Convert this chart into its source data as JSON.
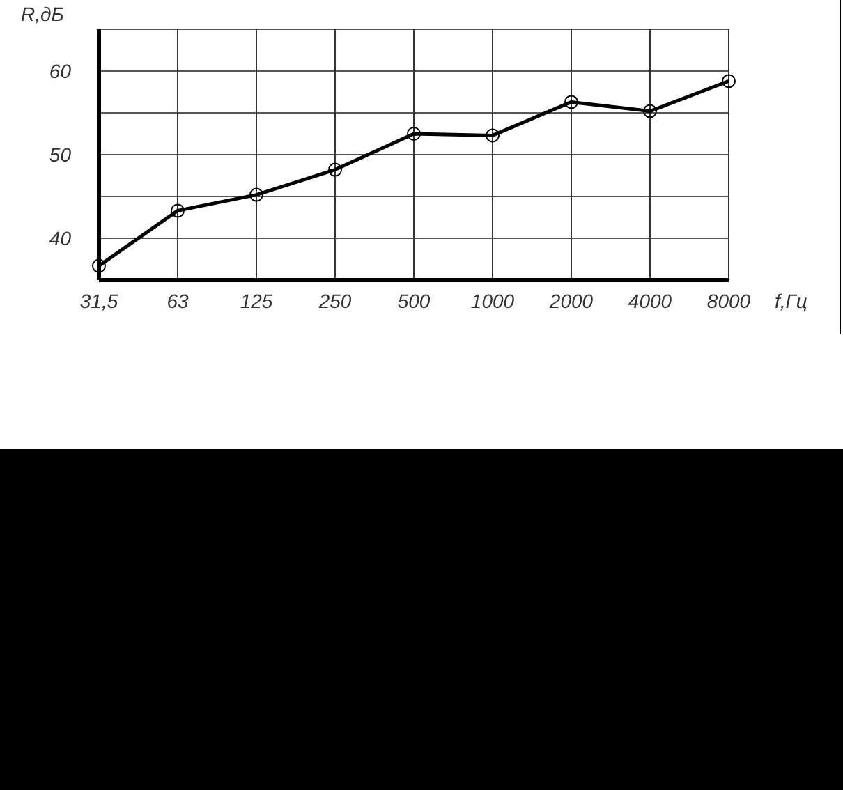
{
  "chart_data": {
    "type": "line",
    "xlabel": "f,Гц",
    "ylabel": "R,дБ",
    "categories": [
      "31,5",
      "63",
      "125",
      "250",
      "500",
      "1000",
      "2000",
      "4000",
      "8000"
    ],
    "series": [
      {
        "color": "#000000",
        "values": [
          36.7,
          43.3,
          45.2,
          48.2,
          52.5,
          52.3,
          56.3,
          55.2,
          58.8
        ]
      }
    ],
    "ylim": [
      35,
      65
    ],
    "yticks": [
      {
        "value": 35,
        "label": null
      },
      40,
      {
        "value": 45,
        "label": null
      },
      50,
      {
        "value": 55,
        "label": null
      },
      60,
      {
        "value": 65,
        "label": null
      }
    ],
    "grid": true,
    "marker": "circle",
    "line_style": "solid"
  }
}
